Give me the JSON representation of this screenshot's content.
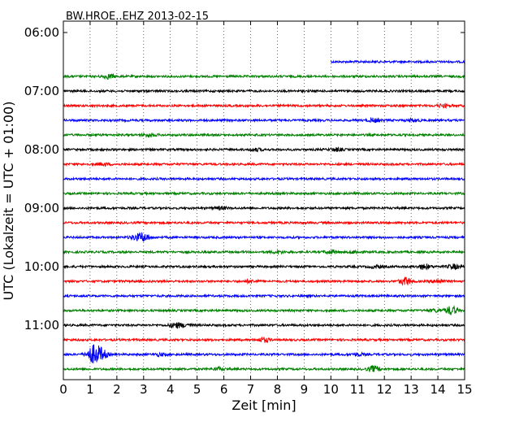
{
  "chart_data": {
    "type": "line",
    "title": "BW.HROE..EHZ 2013-02-15",
    "xlabel": "Zeit  [min]",
    "ylabel": "UTC (Lokalzeit = UTC + 01:00)",
    "xlim": [
      0,
      15
    ],
    "x_ticks": [
      "0",
      "1",
      "2",
      "3",
      "4",
      "5",
      "6",
      "7",
      "8",
      "9",
      "10",
      "11",
      "12",
      "13",
      "14",
      "15"
    ],
    "y_ticks": [
      "06:00",
      "07:00",
      "08:00",
      "09:00",
      "10:00",
      "11:00"
    ],
    "grid": "vertical dotted",
    "colors": {
      "blue": "#0000ff",
      "green": "#008000",
      "black": "#000000",
      "red": "#ff0000"
    },
    "series": [
      {
        "start": "06:30",
        "color": "blue",
        "x_start": 10,
        "x_end": 15,
        "bursts": []
      },
      {
        "start": "06:45",
        "color": "green",
        "x_start": 0,
        "x_end": 15,
        "bursts": [
          [
            1.7,
            2.5
          ]
        ]
      },
      {
        "start": "07:00",
        "color": "black",
        "x_start": 0,
        "x_end": 15,
        "bursts": []
      },
      {
        "start": "07:15",
        "color": "red",
        "x_start": 0,
        "x_end": 15,
        "bursts": [
          [
            14.2,
            1.8
          ]
        ]
      },
      {
        "start": "07:30",
        "color": "blue",
        "x_start": 0,
        "x_end": 15,
        "bursts": [
          [
            11.6,
            2
          ],
          [
            13.1,
            1.6
          ]
        ]
      },
      {
        "start": "07:45",
        "color": "green",
        "x_start": 0,
        "x_end": 15,
        "bursts": [
          [
            3.2,
            2
          ]
        ]
      },
      {
        "start": "08:00",
        "color": "black",
        "x_start": 0,
        "x_end": 15,
        "bursts": [
          [
            10.2,
            1.8
          ],
          [
            7.2,
            1.5
          ]
        ]
      },
      {
        "start": "08:15",
        "color": "red",
        "x_start": 0,
        "x_end": 15,
        "bursts": [
          [
            1.5,
            1.5
          ]
        ]
      },
      {
        "start": "08:30",
        "color": "blue",
        "x_start": 0,
        "x_end": 15,
        "bursts": []
      },
      {
        "start": "08:45",
        "color": "green",
        "x_start": 0,
        "x_end": 15,
        "bursts": []
      },
      {
        "start": "09:00",
        "color": "black",
        "x_start": 0,
        "x_end": 15,
        "bursts": [
          [
            5.9,
            1.5
          ]
        ]
      },
      {
        "start": "09:15",
        "color": "red",
        "x_start": 0,
        "x_end": 15,
        "bursts": []
      },
      {
        "start": "09:30",
        "color": "blue",
        "x_start": 0,
        "x_end": 15,
        "bursts": [
          [
            3.0,
            4.5
          ],
          [
            2.7,
            2.5
          ]
        ]
      },
      {
        "start": "09:45",
        "color": "green",
        "x_start": 0,
        "x_end": 15,
        "bursts": [
          [
            10.0,
            1.8
          ],
          [
            8.0,
            1.4
          ],
          [
            10.9,
            1.6
          ]
        ]
      },
      {
        "start": "10:00",
        "color": "black",
        "x_start": 0,
        "x_end": 15,
        "bursts": [
          [
            13.5,
            3
          ],
          [
            14.6,
            2.5
          ],
          [
            11.7,
            1.6
          ]
        ]
      },
      {
        "start": "10:15",
        "color": "red",
        "x_start": 0,
        "x_end": 15,
        "bursts": [
          [
            12.8,
            4.5
          ],
          [
            7.0,
            1.6
          ],
          [
            14.0,
            2.5
          ]
        ]
      },
      {
        "start": "10:30",
        "color": "blue",
        "x_start": 0,
        "x_end": 15,
        "bursts": []
      },
      {
        "start": "10:45",
        "color": "green",
        "x_start": 0,
        "x_end": 15,
        "bursts": [
          [
            14.5,
            5
          ],
          [
            13.9,
            1.5
          ]
        ]
      },
      {
        "start": "11:00",
        "color": "black",
        "x_start": 0,
        "x_end": 15,
        "bursts": [
          [
            4.2,
            3
          ],
          [
            4.6,
            1.6
          ]
        ]
      },
      {
        "start": "11:15",
        "color": "red",
        "x_start": 0,
        "x_end": 15,
        "bursts": [
          [
            7.5,
            2.5
          ]
        ]
      },
      {
        "start": "11:30",
        "color": "blue",
        "x_start": 0,
        "x_end": 15,
        "bursts": [
          [
            1.1,
            10
          ],
          [
            1.4,
            7
          ],
          [
            11.0,
            1.6
          ],
          [
            3.6,
            1.5
          ]
        ]
      },
      {
        "start": "11:45",
        "color": "green",
        "x_start": 0,
        "x_end": 15,
        "bursts": [
          [
            11.6,
            3.5
          ],
          [
            5.8,
            1.6
          ]
        ]
      }
    ]
  }
}
